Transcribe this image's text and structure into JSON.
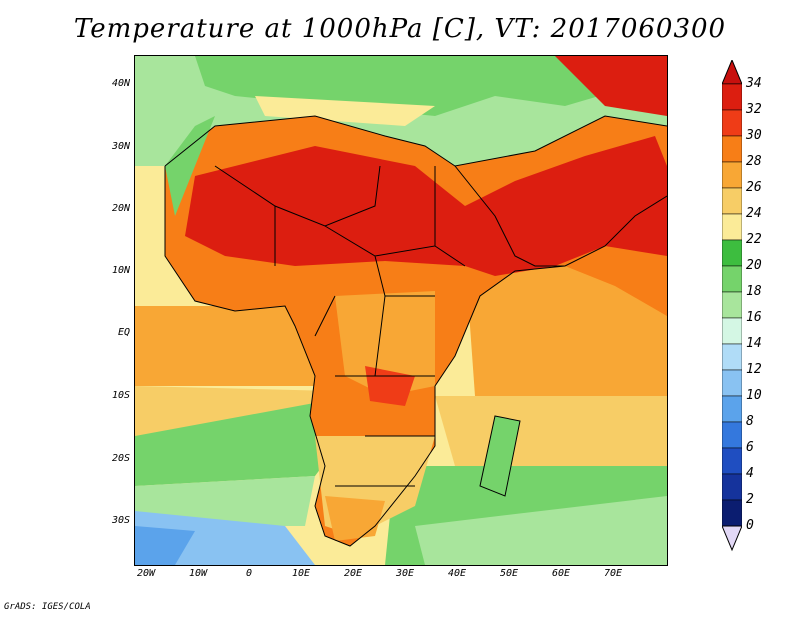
{
  "title": "Temperature at 1000hPa [C], VT: 2017060300",
  "footer": "GrADS: IGES/COLA",
  "map": {
    "lat_labels": [
      "40N",
      "30N",
      "20N",
      "10N",
      "EQ",
      "10S",
      "20S",
      "30S"
    ],
    "lon_labels": [
      "20W",
      "10W",
      "0",
      "10E",
      "20E",
      "30E",
      "40E",
      "50E",
      "60E",
      "70E"
    ],
    "lat_range": [
      -35,
      45
    ],
    "lon_range": [
      -22,
      80
    ]
  },
  "colorbar": {
    "labels": [
      "34",
      "32",
      "30",
      "28",
      "26",
      "24",
      "22",
      "20",
      "18",
      "16",
      "14",
      "12",
      "10",
      "8",
      "6",
      "4",
      "2",
      "0"
    ],
    "colors": [
      "#dc1e10",
      "#ef3c17",
      "#f77e17",
      "#f8a735",
      "#f7cd66",
      "#fbeb98",
      "#3dbd3f",
      "#75d36b",
      "#a8e59c",
      "#d4f7e4",
      "#b0dcf7",
      "#89c2f2",
      "#5ba3eb",
      "#3478dd",
      "#1f4ec1",
      "#15339c",
      "#0b1d70"
    ],
    "top_arrow_color": "#c8100e",
    "bottom_arrow_color": "#e2d8f6"
  }
}
